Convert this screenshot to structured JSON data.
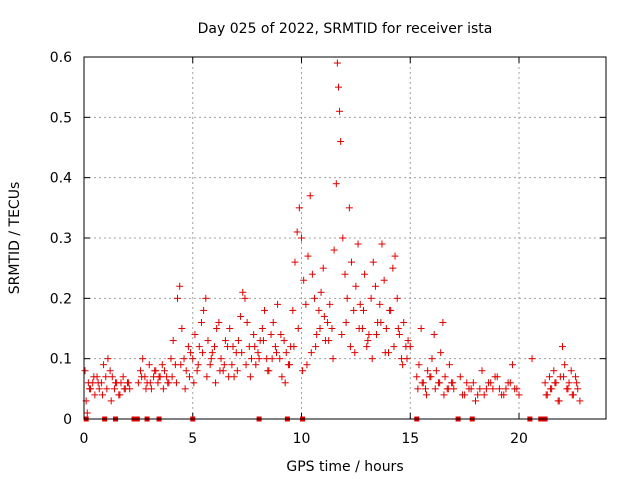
{
  "chart_data": {
    "type": "scatter",
    "title": "Day 025 of 2022, SRMTID for receiver ista",
    "xlabel": "GPS time / hours",
    "ylabel": "SRMTID / TECUs",
    "xlim": [
      0,
      24
    ],
    "ylim": [
      0,
      0.6
    ],
    "xticks": [
      "0",
      "5",
      "10",
      "15",
      "20"
    ],
    "yticks": [
      "0",
      "0.1",
      "0.2",
      "0.3",
      "0.4",
      "0.5",
      "0.6"
    ],
    "grid": true,
    "marker": "+",
    "color": "#e00000",
    "series": [
      {
        "name": "SRMTID",
        "x": [
          0.05,
          0.1,
          0.15,
          0.2,
          0.3,
          0.4,
          0.5,
          0.6,
          0.7,
          0.8,
          0.9,
          1.0,
          1.1,
          1.2,
          1.3,
          1.4,
          1.5,
          1.6,
          1.7,
          1.8,
          1.9,
          2.0,
          2.1,
          2.5,
          2.6,
          2.7,
          2.8,
          2.9,
          3.0,
          3.1,
          3.2,
          3.3,
          3.4,
          3.5,
          3.6,
          3.7,
          3.8,
          3.9,
          4.0,
          4.1,
          4.2,
          4.3,
          4.4,
          4.5,
          4.6,
          4.7,
          4.8,
          4.9,
          5.0,
          5.1,
          5.2,
          5.3,
          5.4,
          5.5,
          5.6,
          5.7,
          5.8,
          5.9,
          6.0,
          6.1,
          6.2,
          6.3,
          6.4,
          6.5,
          6.6,
          6.7,
          6.8,
          6.9,
          7.0,
          7.1,
          7.2,
          7.3,
          7.4,
          7.5,
          7.6,
          7.7,
          7.8,
          7.9,
          8.0,
          8.1,
          8.2,
          8.3,
          8.4,
          8.5,
          8.6,
          8.7,
          8.8,
          8.9,
          9.0,
          9.1,
          9.2,
          9.3,
          9.4,
          9.5,
          9.6,
          9.7,
          9.8,
          9.9,
          10.0,
          10.1,
          10.2,
          10.3,
          10.4,
          10.5,
          10.6,
          10.7,
          10.8,
          10.9,
          11.0,
          11.1,
          11.2,
          11.3,
          11.4,
          11.5,
          11.6,
          11.65,
          11.7,
          11.75,
          11.8,
          11.9,
          12.0,
          12.1,
          12.2,
          12.3,
          12.4,
          12.5,
          12.6,
          12.7,
          12.8,
          12.9,
          13.0,
          13.1,
          13.2,
          13.3,
          13.4,
          13.5,
          13.6,
          13.7,
          13.8,
          13.9,
          14.0,
          14.1,
          14.2,
          14.3,
          14.4,
          14.5,
          14.6,
          14.7,
          14.8,
          14.9,
          15.0,
          15.3,
          15.4,
          15.5,
          15.6,
          15.7,
          15.8,
          15.9,
          16.0,
          16.1,
          16.2,
          16.3,
          16.4,
          16.5,
          16.6,
          16.7,
          16.8,
          16.9,
          17.0,
          17.3,
          17.5,
          17.7,
          17.9,
          18.1,
          18.3,
          18.5,
          18.7,
          18.9,
          19.1,
          19.3,
          19.5,
          19.7,
          19.9,
          20.0,
          20.6,
          21.2,
          21.3,
          21.4,
          21.5,
          21.6,
          21.7,
          21.8,
          21.9,
          22.0,
          22.1,
          22.2,
          22.3,
          22.4,
          22.5,
          22.6,
          22.7,
          22.8,
          0.25,
          0.45,
          0.65,
          0.85,
          1.05,
          1.25,
          1.45,
          1.65,
          1.85,
          2.05,
          2.65,
          2.85,
          3.05,
          3.25,
          3.45,
          3.65,
          3.85,
          4.05,
          4.25,
          4.45,
          4.65,
          4.85,
          5.05,
          5.25,
          5.45,
          5.65,
          5.85,
          6.05,
          6.25,
          6.45,
          6.65,
          6.85,
          7.05,
          7.25,
          7.45,
          7.65,
          7.85,
          8.05,
          8.25,
          8.45,
          8.65,
          8.85,
          9.05,
          9.25,
          9.45,
          9.65,
          9.85,
          10.05,
          10.25,
          10.45,
          10.65,
          10.85,
          11.05,
          11.25,
          11.45,
          11.85,
          12.05,
          12.25,
          12.45,
          12.65,
          12.85,
          13.05,
          13.25,
          13.45,
          13.65,
          13.85,
          14.05,
          14.25,
          14.45,
          14.65,
          14.85,
          15.35,
          15.55,
          15.75,
          15.95,
          16.15,
          16.35,
          16.55,
          16.75,
          16.95,
          17.4,
          17.6,
          17.8,
          18.0,
          18.2,
          18.4,
          18.6,
          18.8,
          19.0,
          19.2,
          19.4,
          19.6,
          19.8,
          21.25,
          21.45,
          21.65,
          21.85,
          22.05,
          22.25,
          22.45,
          22.65
        ],
        "y": [
          0.08,
          0.03,
          0.01,
          0.06,
          0.05,
          0.06,
          0.04,
          0.07,
          0.05,
          0.06,
          0.09,
          0.07,
          0.1,
          0.08,
          0.07,
          0.05,
          0.06,
          0.04,
          0.06,
          0.07,
          0.05,
          0.06,
          0.05,
          0.06,
          0.08,
          0.1,
          0.07,
          0.06,
          0.09,
          0.05,
          0.07,
          0.08,
          0.06,
          0.07,
          0.09,
          0.08,
          0.07,
          0.06,
          0.1,
          0.13,
          0.09,
          0.2,
          0.22,
          0.15,
          0.1,
          0.08,
          0.12,
          0.11,
          0.1,
          0.14,
          0.08,
          0.12,
          0.16,
          0.18,
          0.2,
          0.13,
          0.09,
          0.11,
          0.12,
          0.15,
          0.16,
          0.1,
          0.08,
          0.13,
          0.12,
          0.15,
          0.09,
          0.07,
          0.11,
          0.13,
          0.17,
          0.21,
          0.2,
          0.16,
          0.12,
          0.1,
          0.14,
          0.09,
          0.11,
          0.13,
          0.15,
          0.18,
          0.1,
          0.08,
          0.14,
          0.16,
          0.12,
          0.19,
          0.1,
          0.07,
          0.13,
          0.11,
          0.09,
          0.12,
          0.18,
          0.26,
          0.31,
          0.35,
          0.3,
          0.23,
          0.19,
          0.27,
          0.37,
          0.24,
          0.2,
          0.14,
          0.18,
          0.21,
          0.25,
          0.13,
          0.16,
          0.19,
          0.15,
          0.28,
          0.39,
          0.59,
          0.55,
          0.51,
          0.46,
          0.3,
          0.24,
          0.2,
          0.35,
          0.26,
          0.18,
          0.22,
          0.29,
          0.19,
          0.15,
          0.24,
          0.12,
          0.14,
          0.2,
          0.26,
          0.22,
          0.16,
          0.19,
          0.29,
          0.23,
          0.15,
          0.11,
          0.18,
          0.25,
          0.27,
          0.2,
          0.14,
          0.1,
          0.16,
          0.12,
          0.13,
          0.12,
          0.07,
          0.09,
          0.15,
          0.06,
          0.05,
          0.08,
          0.07,
          0.1,
          0.14,
          0.08,
          0.06,
          0.11,
          0.16,
          0.07,
          0.05,
          0.09,
          0.06,
          0.05,
          0.07,
          0.04,
          0.05,
          0.06,
          0.04,
          0.08,
          0.05,
          0.06,
          0.07,
          0.05,
          0.04,
          0.06,
          0.09,
          0.05,
          0.04,
          0.1,
          0.06,
          0.04,
          0.07,
          0.05,
          0.08,
          0.06,
          0.03,
          0.07,
          0.12,
          0.09,
          0.05,
          0.06,
          0.08,
          0.04,
          0.07,
          0.05,
          0.03,
          0.05,
          0.07,
          0.06,
          0.04,
          0.05,
          0.03,
          0.06,
          0.04,
          0.05,
          0.06,
          0.07,
          0.05,
          0.06,
          0.08,
          0.07,
          0.05,
          0.06,
          0.07,
          0.06,
          0.09,
          0.05,
          0.07,
          0.06,
          0.09,
          0.11,
          0.07,
          0.1,
          0.06,
          0.08,
          0.09,
          0.07,
          0.12,
          0.08,
          0.11,
          0.09,
          0.07,
          0.12,
          0.1,
          0.13,
          0.08,
          0.1,
          0.11,
          0.14,
          0.06,
          0.09,
          0.12,
          0.15,
          0.08,
          0.09,
          0.11,
          0.12,
          0.15,
          0.17,
          0.13,
          0.1,
          0.14,
          0.16,
          0.12,
          0.11,
          0.15,
          0.18,
          0.13,
          0.1,
          0.14,
          0.16,
          0.11,
          0.18,
          0.12,
          0.15,
          0.09,
          0.1,
          0.05,
          0.06,
          0.04,
          0.07,
          0.05,
          0.06,
          0.04,
          0.05,
          0.06,
          0.04,
          0.06,
          0.05,
          0.03,
          0.05,
          0.04,
          0.06,
          0.05,
          0.07,
          0.04,
          0.05,
          0.06,
          0.05,
          0.04,
          0.05,
          0.06,
          0.03,
          0.07,
          0.05,
          0.04,
          0.06
        ]
      }
    ],
    "gap_markers_x": [
      0.1,
      0.95,
      1.45,
      2.3,
      2.45,
      2.9,
      3.45,
      5.0,
      8.05,
      9.35,
      10.05,
      15.3,
      17.2,
      17.85,
      20.5,
      21.0,
      21.1,
      21.2
    ]
  }
}
